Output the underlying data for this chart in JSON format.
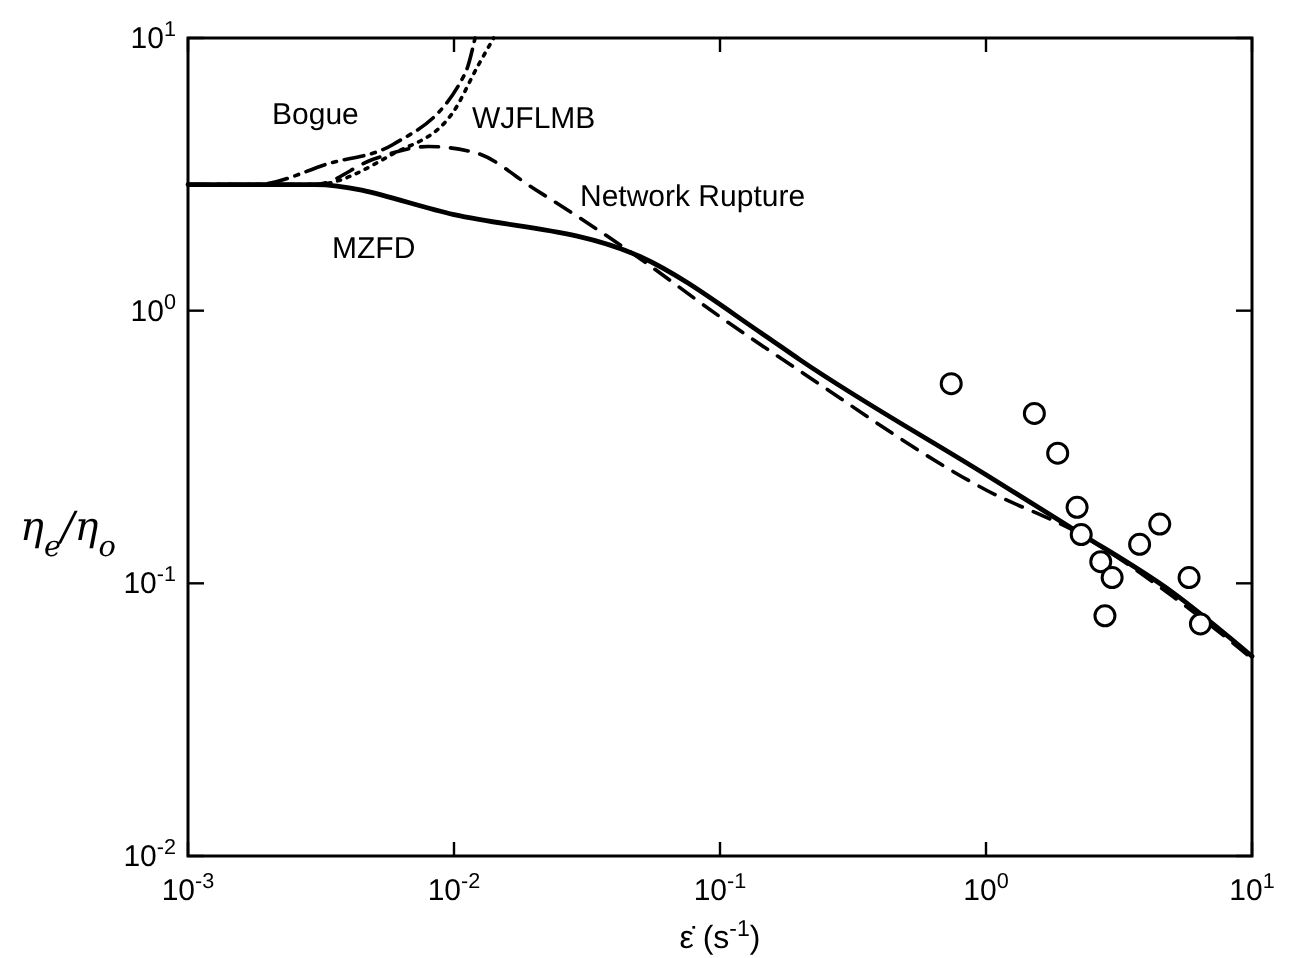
{
  "chart_data": {
    "type": "line",
    "xlabel": "ε̇ (s$^{-1}$)",
    "ylabel": "η$_{e}$/η$_{o}$",
    "log": "xy",
    "grid": false,
    "legend": false,
    "xlim": [
      0.001,
      10
    ],
    "ylim": [
      0.01,
      10
    ],
    "xticks": [
      {
        "value": 0.001,
        "label": "10$^{-3}$"
      },
      {
        "value": 0.01,
        "label": "10$^{-2}$"
      },
      {
        "value": 0.1,
        "label": "10$^{-1}$"
      },
      {
        "value": 1,
        "label": "10$^{0}$"
      },
      {
        "value": 10,
        "label": "10$^{1}$"
      }
    ],
    "yticks": [
      {
        "value": 0.01,
        "label": "10$^{-2}$"
      },
      {
        "value": 0.1,
        "label": "10$^{-1}$"
      },
      {
        "value": 1,
        "label": "10$^{0}$"
      },
      {
        "value": 10,
        "label": "10$^{1}$"
      }
    ],
    "series": [
      {
        "name": "MZFD",
        "color": "#000000",
        "line_style": "solid",
        "x": [
          0.001,
          0.003,
          0.01,
          0.05,
          0.145,
          0.2,
          1,
          2.2,
          5,
          10
        ],
        "values": [
          2.9,
          2.9,
          2.25,
          1.58,
          0.82,
          0.66,
          0.25,
          0.155,
          0.093,
          0.054
        ]
      },
      {
        "name": "Network Rupture",
        "color": "#000000",
        "line_style": "dashed",
        "x": [
          0.001,
          0.003,
          0.005,
          0.008,
          0.012,
          0.02,
          0.047,
          0.1,
          0.2,
          1,
          2.3,
          5,
          10
        ],
        "values": [
          2.9,
          2.9,
          3.6,
          4.0,
          3.8,
          2.8,
          1.62,
          0.95,
          0.6,
          0.22,
          0.15,
          0.09,
          0.053
        ]
      },
      {
        "name": "Bogue",
        "color": "#000000",
        "line_style": "dashdot",
        "x": [
          0.001,
          0.0018,
          0.0034,
          0.0059,
          0.011,
          0.012
        ],
        "values": [
          2.9,
          2.9,
          3.47,
          4.07,
          7.4,
          10
        ]
      },
      {
        "name": "WJFLMB",
        "color": "#000000",
        "line_style": "dotted",
        "x": [
          0.001,
          0.003,
          0.0059,
          0.0098,
          0.0123,
          0.0141
        ],
        "values": [
          2.9,
          2.9,
          3.76,
          5.25,
          7.9,
          10
        ]
      },
      {
        "type": "scatter",
        "color": "#000000",
        "marker": "circle",
        "x": [
          0.74,
          1.52,
          1.86,
          2.2,
          2.28,
          2.7,
          2.98,
          2.8,
          3.78,
          4.5,
          5.8,
          6.4
        ],
        "values": [
          0.54,
          0.42,
          0.3,
          0.19,
          0.151,
          0.12,
          0.105,
          0.076,
          0.139,
          0.165,
          0.105,
          0.071
        ]
      }
    ]
  }
}
